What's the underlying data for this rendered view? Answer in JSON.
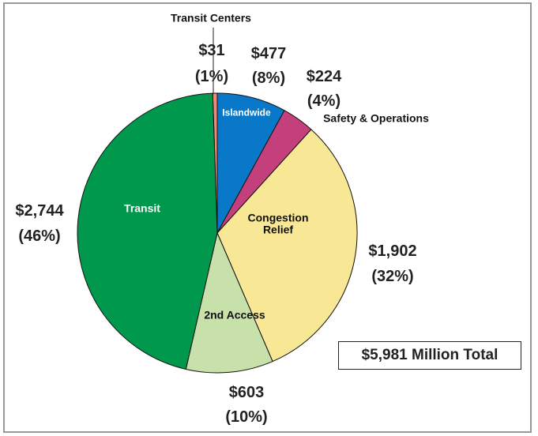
{
  "chart_data": {
    "type": "pie",
    "categories": [
      "Transit Centers",
      "Islandwide",
      "Safety & Operations",
      "Congestion Relief",
      "2nd Access",
      "Transit"
    ],
    "values": [
      31,
      477,
      224,
      1902,
      603,
      2744
    ],
    "value_labels": [
      "$31",
      "$477",
      "$224",
      "$1,902",
      "$603",
      "$2,744"
    ],
    "percent_labels": [
      "(1%)",
      "(8%)",
      "(4%)",
      "(32%)",
      "(10%)",
      "(46%)"
    ],
    "colors": [
      "#f08a78",
      "#0a78c8",
      "#c4407c",
      "#f8e896",
      "#c8e0aa",
      "#00984c"
    ],
    "total_label": "$5,981 Million Total"
  }
}
